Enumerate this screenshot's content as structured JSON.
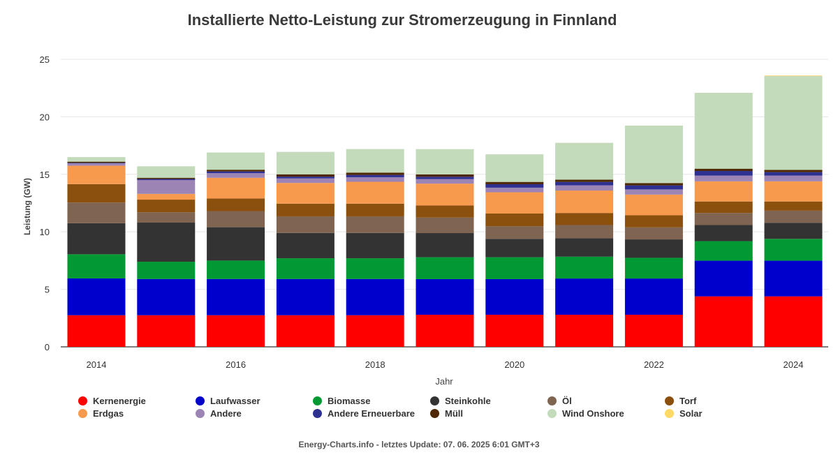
{
  "chart_data": {
    "type": "bar",
    "stacked": true,
    "title": "Installierte Netto-Leistung zur Stromerzeugung in Finnland",
    "xlabel": "Jahr",
    "ylabel": "Leistung (GW)",
    "ylim": [
      0,
      25
    ],
    "yticks": [
      0,
      5,
      10,
      15,
      20,
      25
    ],
    "categories": [
      "2014",
      "2015",
      "2016",
      "2017",
      "2018",
      "2019",
      "2020",
      "2021",
      "2022",
      "2023",
      "2024"
    ],
    "xtick_labels": [
      "2014",
      "",
      "2016",
      "",
      "2018",
      "",
      "2020",
      "",
      "2022",
      "",
      "2024"
    ],
    "grid": true,
    "legend_position": "bottom",
    "series": [
      {
        "name": "Kernenergie",
        "color": "#ff0000",
        "values": [
          2.75,
          2.75,
          2.75,
          2.75,
          2.75,
          2.79,
          2.79,
          2.79,
          2.79,
          4.39,
          4.39
        ]
      },
      {
        "name": "Laufwasser",
        "color": "#0000cc",
        "values": [
          3.2,
          3.15,
          3.15,
          3.15,
          3.15,
          3.1,
          3.1,
          3.15,
          3.15,
          3.1,
          3.1
        ]
      },
      {
        "name": "Biomasse",
        "color": "#009933",
        "values": [
          2.1,
          1.5,
          1.6,
          1.8,
          1.8,
          1.9,
          1.9,
          1.9,
          1.8,
          1.7,
          1.9
        ]
      },
      {
        "name": "Steinkohle",
        "color": "#333333",
        "values": [
          2.7,
          3.4,
          2.9,
          2.2,
          2.2,
          2.1,
          1.6,
          1.6,
          1.6,
          1.4,
          1.4
        ]
      },
      {
        "name": "Öl",
        "color": "#7f6451",
        "values": [
          1.8,
          0.9,
          1.4,
          1.45,
          1.45,
          1.35,
          1.1,
          1.15,
          1.05,
          1.05,
          1.05
        ]
      },
      {
        "name": "Torf",
        "color": "#8b4f0e",
        "values": [
          1.6,
          1.1,
          1.1,
          1.1,
          1.1,
          1.05,
          1.1,
          1.05,
          1.05,
          1.0,
          0.8
        ]
      },
      {
        "name": "Erdgas",
        "color": "#f89a4d",
        "values": [
          1.6,
          0.5,
          1.8,
          1.8,
          1.9,
          1.9,
          1.85,
          1.95,
          1.8,
          1.75,
          1.75
        ]
      },
      {
        "name": "Andere",
        "color": "#9c84b5",
        "values": [
          0.2,
          1.2,
          0.4,
          0.4,
          0.4,
          0.4,
          0.4,
          0.45,
          0.45,
          0.5,
          0.5
        ]
      },
      {
        "name": "Andere Erneuerbare",
        "color": "#2e3192",
        "values": [
          0.05,
          0.1,
          0.15,
          0.15,
          0.2,
          0.2,
          0.3,
          0.3,
          0.35,
          0.4,
          0.3
        ]
      },
      {
        "name": "Müll",
        "color": "#4d2800",
        "values": [
          0.1,
          0.1,
          0.15,
          0.2,
          0.2,
          0.2,
          0.2,
          0.2,
          0.2,
          0.2,
          0.2
        ]
      },
      {
        "name": "Wind Onshore",
        "color": "#c3dbbb",
        "values": [
          0.4,
          1.0,
          1.5,
          1.95,
          2.05,
          2.2,
          2.4,
          3.2,
          5.0,
          6.6,
          8.15
        ]
      },
      {
        "name": "Solar",
        "color": "#ffd966",
        "values": [
          0,
          0,
          0,
          0,
          0,
          0,
          0,
          0,
          0,
          0,
          0.05
        ]
      }
    ]
  },
  "footer": "Energy-Charts.info - letztes Update: 07. 06. 2025 6:01 GMT+3"
}
